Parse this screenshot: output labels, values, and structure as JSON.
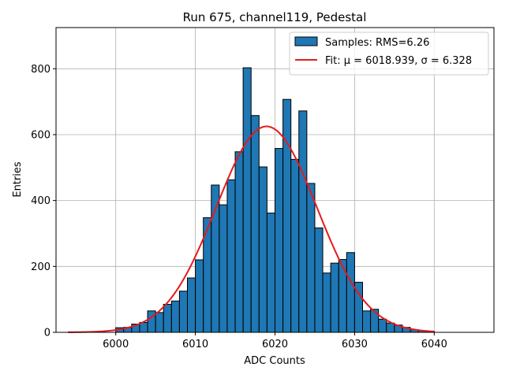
{
  "chart_data": {
    "type": "bar",
    "title": "Run 675, channel119, Pedestal",
    "xlabel": "ADC Counts",
    "ylabel": "Entries",
    "xlim": [
      5992.5,
      6047.5
    ],
    "ylim": [
      0,
      925
    ],
    "xticks": [
      6000,
      6010,
      6020,
      6030,
      6040
    ],
    "yticks": [
      0,
      200,
      400,
      600,
      800
    ],
    "grid": true,
    "legend_position": "top-right",
    "bar_color": "#1f77b4",
    "fit_color": "#e41a1c",
    "bins": {
      "x": [
        6000,
        6001,
        6002,
        6003,
        6004,
        6005,
        6006,
        6007,
        6008,
        6009,
        6010,
        6011,
        6012,
        6013,
        6014,
        6015,
        6016,
        6017,
        6018,
        6019,
        6020,
        6021,
        6022,
        6023,
        6024,
        6025,
        6026,
        6027,
        6028,
        6029,
        6030,
        6031,
        6032,
        6033,
        6034,
        6035,
        6036,
        6037,
        6038,
        6039
      ],
      "values": [
        14,
        15,
        25,
        30,
        65,
        60,
        85,
        95,
        125,
        165,
        220,
        348,
        447,
        387,
        463,
        548,
        803,
        658,
        502,
        362,
        558,
        707,
        525,
        672,
        452,
        317,
        180,
        210,
        221,
        242,
        152,
        65,
        70,
        40,
        28,
        22,
        15,
        8,
        5,
        3
      ]
    },
    "fit": {
      "mu": 6018.939,
      "sigma": 6.328,
      "amplitude": 625,
      "x_range": [
        5994,
        6040
      ]
    },
    "legend": [
      {
        "label": "Samples: RMS=6.26",
        "kind": "patch"
      },
      {
        "label": "Fit: μ = 6018.939, σ = 6.328",
        "kind": "line"
      }
    ]
  }
}
